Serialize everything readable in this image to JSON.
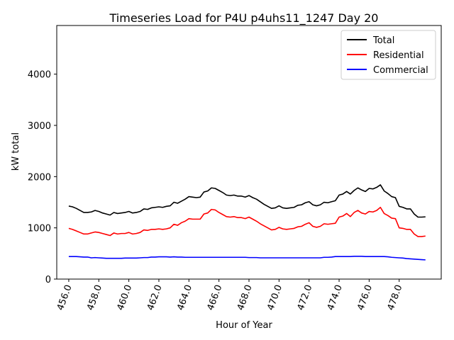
{
  "chart_data": {
    "type": "line",
    "title": "Timeseries Load for P4U p4uhs11_1247  Day 20",
    "xlabel": "Hour of Year",
    "ylabel": "kW total",
    "xlim": [
      455.2,
      480.8
    ],
    "ylim": [
      0,
      4950
    ],
    "xticks": [
      456.0,
      458.0,
      460.0,
      462.0,
      464.0,
      466.0,
      468.0,
      470.0,
      472.0,
      474.0,
      476.0,
      478.0
    ],
    "xtick_labels": [
      "456.0",
      "458.0",
      "460.0",
      "462.0",
      "464.0",
      "466.0",
      "468.0",
      "470.0",
      "472.0",
      "474.0",
      "476.0",
      "478.0"
    ],
    "yticks": [
      0,
      1000,
      2000,
      3000,
      4000
    ],
    "ytick_labels": [
      "0",
      "1000",
      "2000",
      "3000",
      "4000"
    ],
    "legend_position": "top-right",
    "x": [
      456.0,
      456.25,
      456.5,
      456.75,
      457.0,
      457.25,
      457.5,
      457.75,
      458.0,
      458.25,
      458.5,
      458.75,
      459.0,
      459.25,
      459.5,
      459.75,
      460.0,
      460.25,
      460.5,
      460.75,
      461.0,
      461.25,
      461.5,
      461.75,
      462.0,
      462.25,
      462.5,
      462.75,
      463.0,
      463.25,
      463.5,
      463.75,
      464.0,
      464.25,
      464.5,
      464.75,
      465.0,
      465.25,
      465.5,
      465.75,
      466.0,
      466.25,
      466.5,
      466.75,
      467.0,
      467.25,
      467.5,
      467.75,
      468.0,
      468.25,
      468.5,
      468.75,
      469.0,
      469.25,
      469.5,
      469.75,
      470.0,
      470.25,
      470.5,
      470.75,
      471.0,
      471.25,
      471.5,
      471.75,
      472.0,
      472.25,
      472.5,
      472.75,
      473.0,
      473.25,
      473.5,
      473.75,
      474.0,
      474.25,
      474.5,
      474.75,
      475.0,
      475.25,
      475.5,
      475.75,
      476.0,
      476.25,
      476.5,
      476.75,
      477.0,
      477.25,
      477.5,
      477.75,
      478.0,
      478.25,
      478.5,
      478.75,
      479.0,
      479.25,
      479.5,
      479.75
    ],
    "series": [
      {
        "name": "Total",
        "color": "#000000",
        "values": [
          1425,
          1410,
          1380,
          1340,
          1300,
          1300,
          1310,
          1340,
          1320,
          1290,
          1270,
          1250,
          1300,
          1280,
          1290,
          1300,
          1320,
          1290,
          1300,
          1320,
          1370,
          1360,
          1390,
          1400,
          1410,
          1400,
          1420,
          1430,
          1500,
          1480,
          1520,
          1560,
          1610,
          1600,
          1590,
          1600,
          1700,
          1720,
          1780,
          1770,
          1730,
          1690,
          1640,
          1630,
          1640,
          1620,
          1620,
          1600,
          1630,
          1590,
          1560,
          1510,
          1460,
          1420,
          1380,
          1390,
          1430,
          1390,
          1380,
          1390,
          1400,
          1440,
          1450,
          1490,
          1510,
          1450,
          1430,
          1450,
          1500,
          1490,
          1510,
          1530,
          1640,
          1660,
          1710,
          1660,
          1730,
          1780,
          1740,
          1710,
          1770,
          1760,
          1790,
          1840,
          1720,
          1670,
          1610,
          1590,
          1420,
          1400,
          1370,
          1370,
          1270,
          1210,
          1210,
          1215
        ]
      },
      {
        "name": "Residential",
        "color": "#ff0000",
        "values": [
          990,
          970,
          940,
          910,
          880,
          880,
          900,
          920,
          910,
          890,
          870,
          850,
          900,
          880,
          890,
          890,
          910,
          880,
          890,
          910,
          960,
          950,
          970,
          970,
          980,
          970,
          980,
          1000,
          1070,
          1050,
          1100,
          1130,
          1180,
          1170,
          1170,
          1170,
          1270,
          1290,
          1360,
          1350,
          1300,
          1260,
          1220,
          1210,
          1220,
          1200,
          1200,
          1180,
          1210,
          1170,
          1130,
          1080,
          1040,
          1000,
          960,
          970,
          1010,
          980,
          970,
          980,
          990,
          1020,
          1030,
          1070,
          1100,
          1030,
          1010,
          1030,
          1080,
          1070,
          1080,
          1090,
          1210,
          1230,
          1280,
          1220,
          1300,
          1340,
          1290,
          1270,
          1320,
          1310,
          1340,
          1400,
          1280,
          1240,
          1190,
          1180,
          1000,
          990,
          970,
          970,
          880,
          830,
          830,
          840
        ]
      },
      {
        "name": "Commercial",
        "color": "#0000ff",
        "values": [
          440,
          440,
          440,
          435,
          430,
          430,
          415,
          420,
          415,
          410,
          405,
          405,
          405,
          405,
          405,
          410,
          410,
          410,
          410,
          415,
          420,
          420,
          430,
          430,
          435,
          435,
          435,
          430,
          435,
          430,
          430,
          425,
          425,
          425,
          425,
          425,
          425,
          425,
          425,
          425,
          425,
          425,
          425,
          425,
          425,
          425,
          425,
          425,
          420,
          420,
          420,
          415,
          415,
          415,
          415,
          415,
          415,
          415,
          415,
          415,
          415,
          415,
          415,
          415,
          415,
          415,
          415,
          415,
          425,
          425,
          430,
          440,
          440,
          440,
          440,
          440,
          445,
          445,
          445,
          440,
          440,
          440,
          440,
          440,
          440,
          435,
          425,
          420,
          415,
          410,
          400,
          395,
          390,
          385,
          380,
          375
        ]
      }
    ]
  }
}
